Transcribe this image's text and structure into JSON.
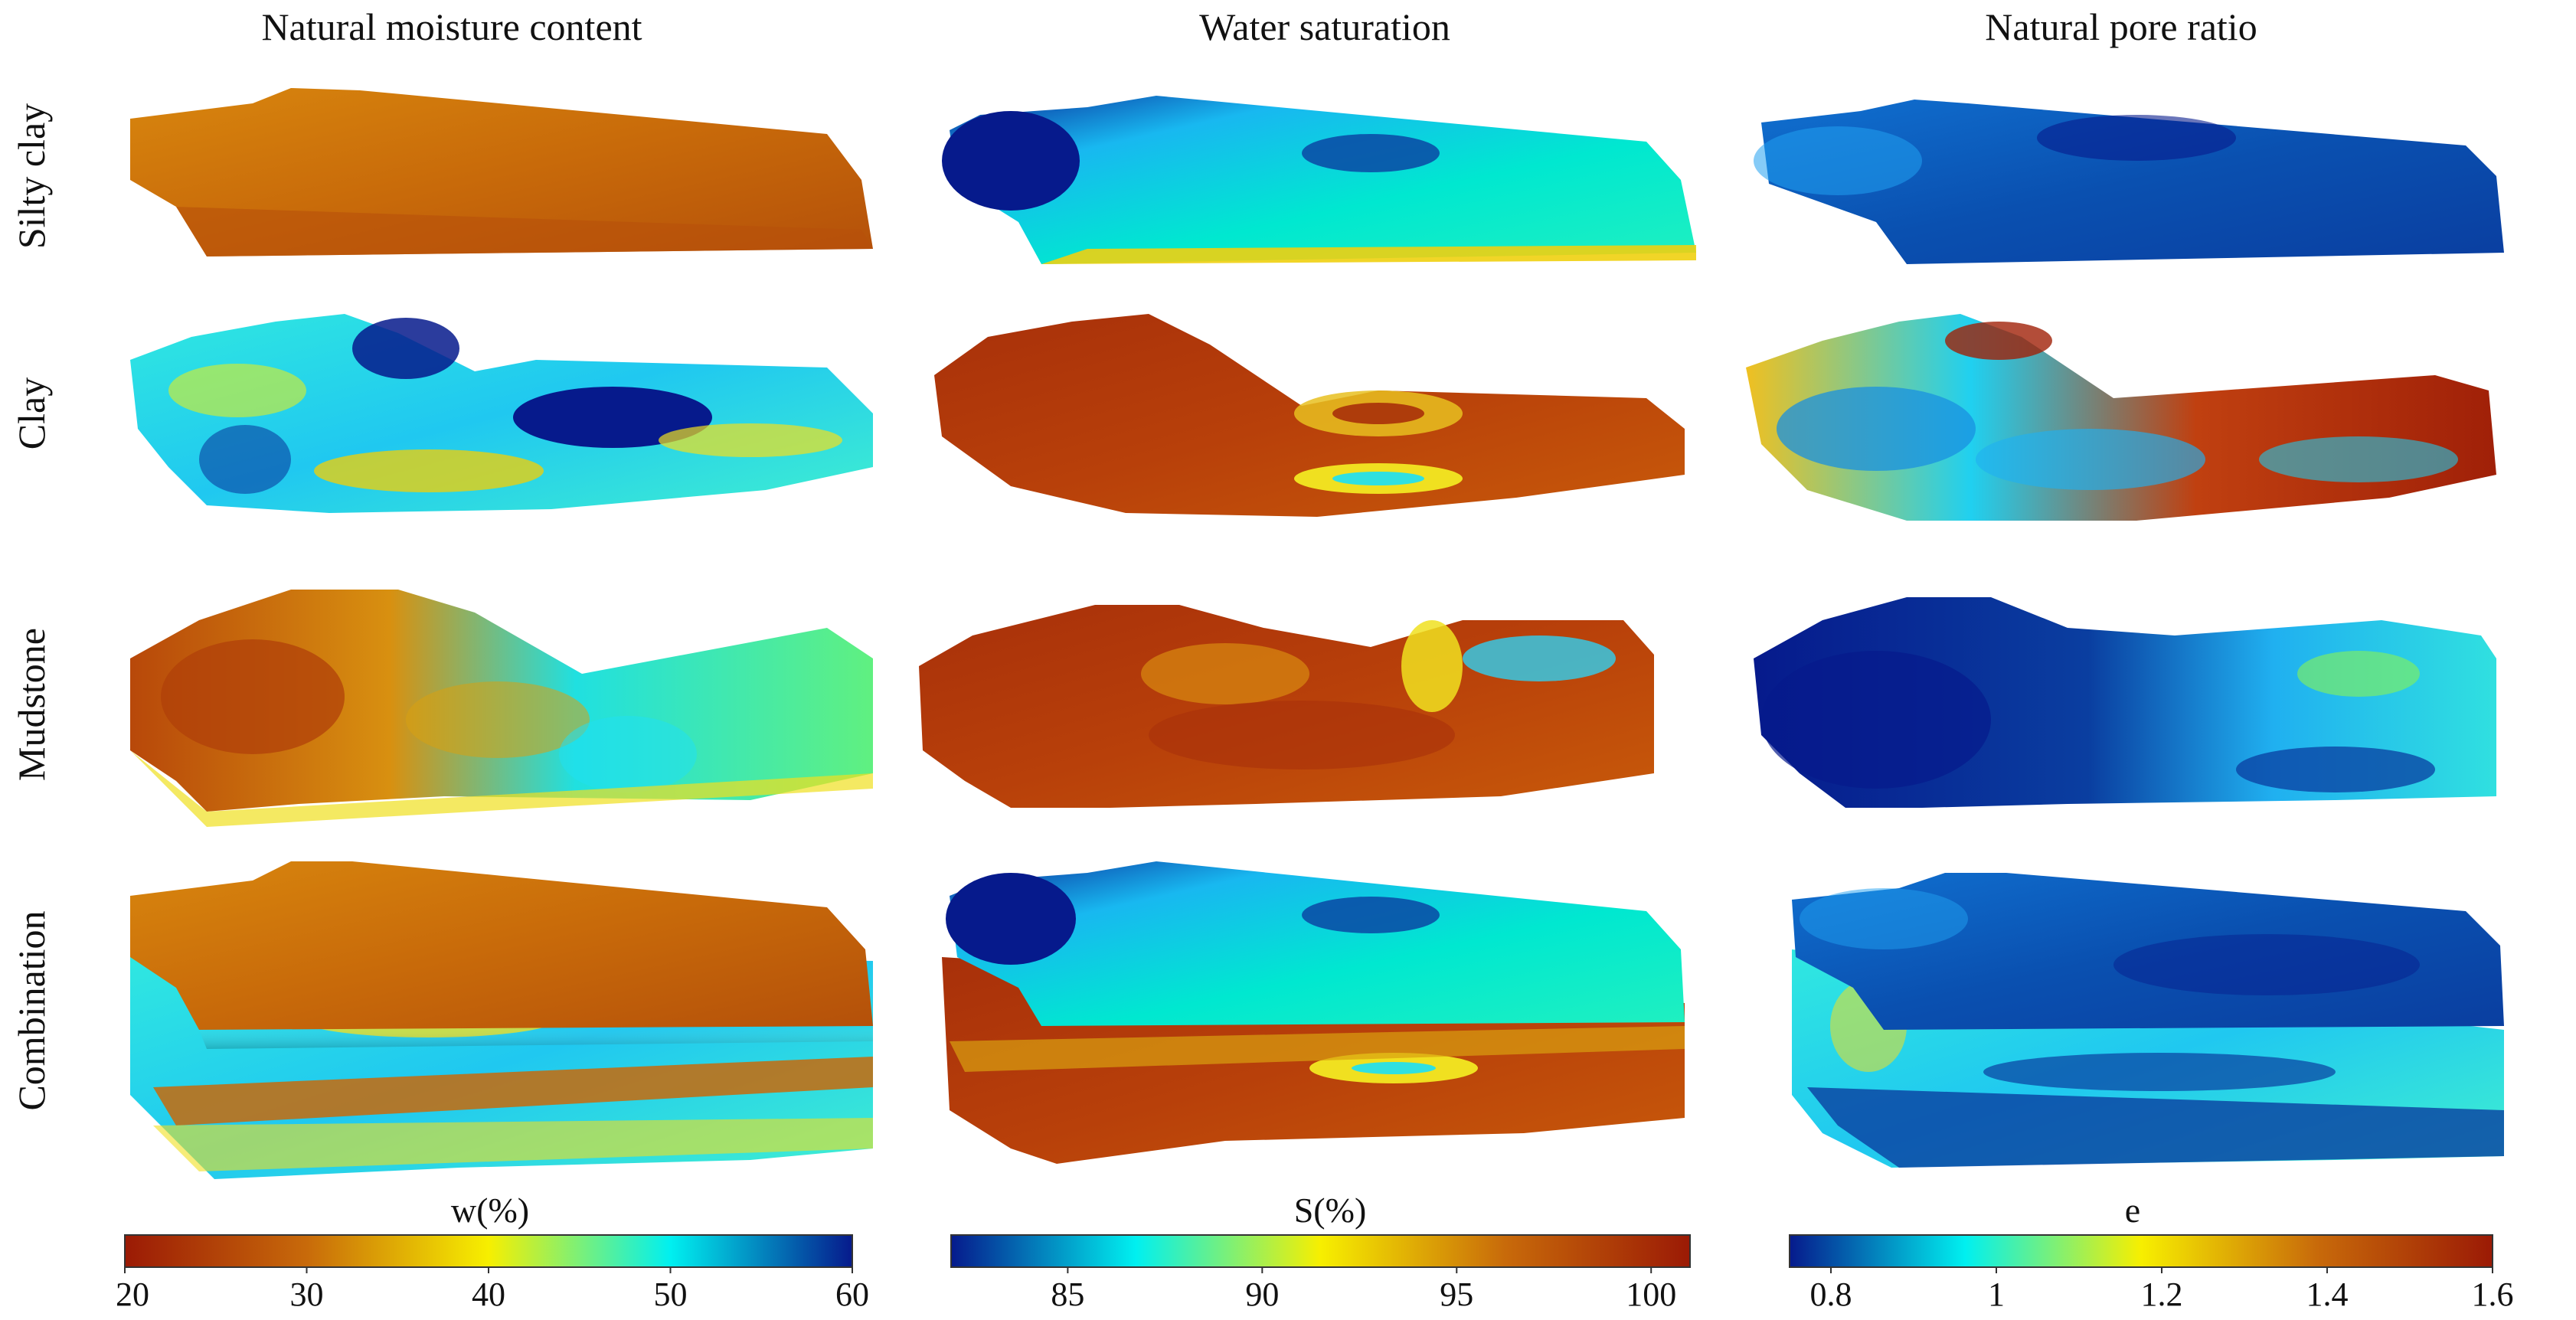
{
  "columns": [
    {
      "title": "Natural moisture content"
    },
    {
      "title": "Water saturation"
    },
    {
      "title": "Natural pore ratio"
    }
  ],
  "rows": [
    {
      "label": "Silty clay"
    },
    {
      "label": "Clay"
    },
    {
      "label": "Mudstone"
    },
    {
      "label": "Combination"
    }
  ],
  "colorbars": [
    {
      "title": "w(%)",
      "ticks": [
        "20",
        "30",
        "40",
        "50",
        "60"
      ],
      "range": [
        20,
        60
      ],
      "direction": "red-to-blue",
      "colors": [
        "#9b1a05",
        "#c86a0a",
        "#f7ef00",
        "#00f0f0",
        "#061a8c"
      ]
    },
    {
      "title": "S(%)",
      "ticks": [
        "85",
        "90",
        "95",
        "100"
      ],
      "range": [
        82,
        101
      ],
      "direction": "blue-to-red",
      "colors": [
        "#061a8c",
        "#00f0f0",
        "#f7ef00",
        "#c86a0a",
        "#9b1a05"
      ]
    },
    {
      "title": "e",
      "ticks": [
        "0.8",
        "1",
        "1.2",
        "1.4",
        "1.6"
      ],
      "range": [
        0.75,
        1.6
      ],
      "direction": "blue-to-red",
      "colors": [
        "#061a8c",
        "#00f0f0",
        "#f7ef00",
        "#c86a0a",
        "#9b1a05"
      ]
    }
  ]
}
